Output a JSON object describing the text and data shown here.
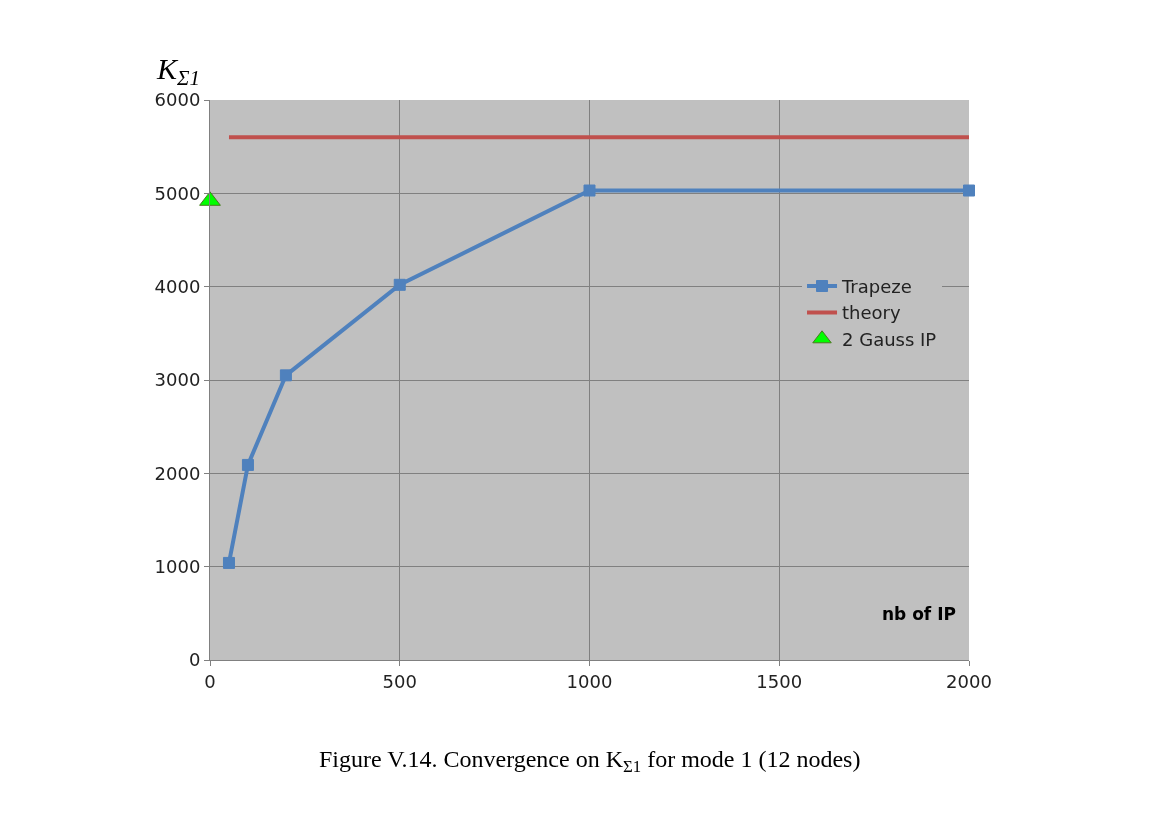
{
  "chart_data": {
    "type": "line",
    "xlabel": "nb of IP",
    "ylabel": "K$_{Σ1}$",
    "xlim": [
      0,
      2000
    ],
    "xticks": [
      0,
      500,
      1000,
      1500,
      2000
    ],
    "ylim": [
      0,
      6000
    ],
    "yticks": [
      0,
      1000,
      2000,
      3000,
      4000,
      5000,
      6000
    ],
    "grid": true,
    "legend": "right",
    "series": [
      {
        "name": "Trapeze",
        "color": "#4f81bd",
        "marker": "square",
        "x": [
          50,
          100,
          200,
          500,
          1000,
          2000
        ],
        "values": [
          1040,
          2090,
          3050,
          4020,
          5030,
          5030
        ]
      },
      {
        "name": "theory",
        "color": "#c0504d",
        "marker": "none",
        "x": [
          50,
          2000
        ],
        "values": [
          5600,
          5600
        ]
      },
      {
        "name": "2 Gauss IP",
        "color": "#00ff00",
        "type": "scatter",
        "marker": "triangle",
        "x": [
          0
        ],
        "values": [
          4920
        ]
      }
    ],
    "annotations": [
      "Figure V.14. Convergence on K$_{Σ1}$ for mode 1 (12 nodes)"
    ]
  }
}
